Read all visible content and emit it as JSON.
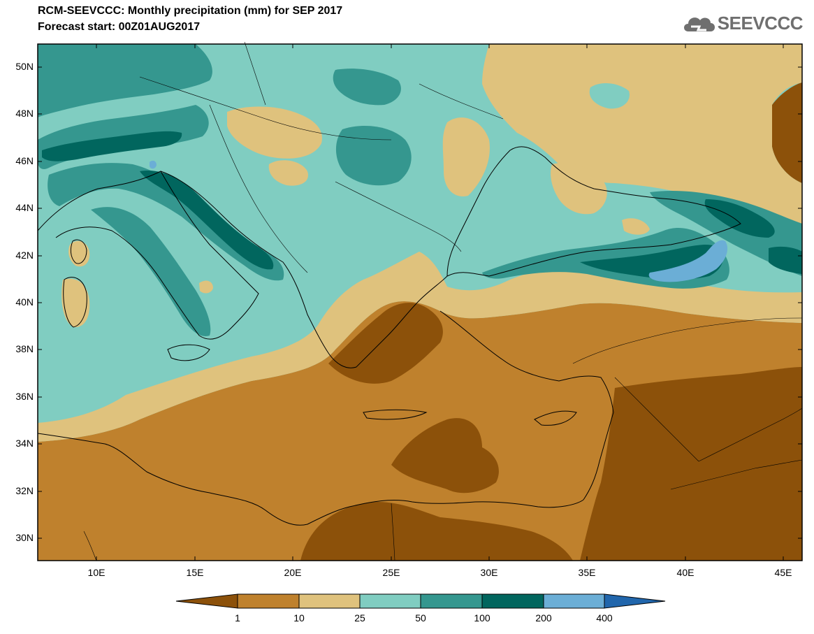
{
  "title_line1": "RCM-SEEVCCC: Monthly precipitation (mm) for SEP 2017",
  "title_line2": "Forecast start: 00Z01AUG2017",
  "logo_text": "SEEVCCC",
  "map": {
    "lon_range": [
      7,
      46
    ],
    "lat_range": [
      29,
      51
    ],
    "lat_labels": [
      "50N",
      "48N",
      "46N",
      "44N",
      "42N",
      "40N",
      "38N",
      "36N",
      "34N",
      "32N",
      "30N"
    ],
    "lon_labels": [
      "10E",
      "15E",
      "20E",
      "25E",
      "30E",
      "35E",
      "40E",
      "45E"
    ],
    "background_color": "#80d0c0"
  },
  "colorbar": {
    "labels": [
      "1",
      "10",
      "25",
      "50",
      "100",
      "200",
      "400"
    ],
    "colors": [
      "#8c510a",
      "#bf812d",
      "#dfc27d",
      "#80cdc1",
      "#35978f",
      "#01665e",
      "#6baed6",
      "#2166ac"
    ]
  }
}
